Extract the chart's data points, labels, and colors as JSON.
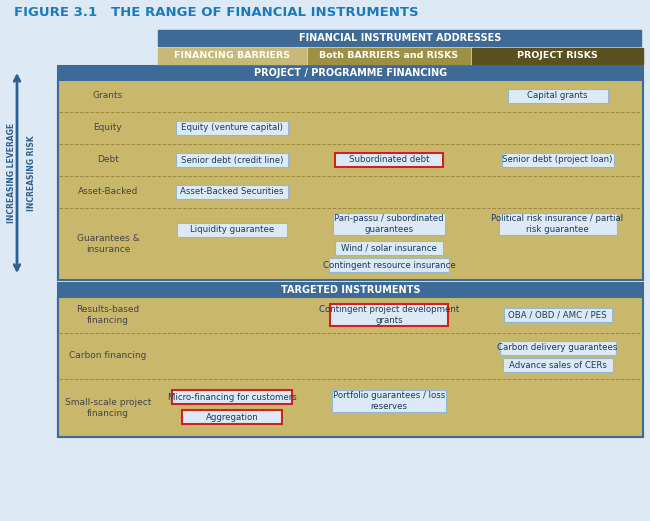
{
  "title": "FIGURE 3.1   THE RANGE OF FINANCIAL INSTRUMENTS",
  "title_color": "#1a7abf",
  "bg_color": "#ddeaf5",
  "header_bar_color": "#3d6a96",
  "header_bar_text": "FINANCIAL INSTRUMENT ADDRESSES",
  "col1_header_text": "FINANCING BARRIERS",
  "col1_header_bg": "#c8b978",
  "col2_header_text": "Both BARRIERS and RISKS",
  "col2_header_bg": "#9e8f44",
  "col3_header_text": "PROJECT RISKS",
  "col3_header_bg": "#5a5020",
  "section1_header_text": "PROJECT / PROGRAMME FINANCING",
  "section1_header_bg": "#3d6a96",
  "section2_header_text": "TARGETED INSTRUMENTS",
  "section2_header_bg": "#3d6a96",
  "section_body_bg": "#c9b86c",
  "row_border_color": "#9a8a3a",
  "item_box_bg": "#ddeaf5",
  "item_box_border_default": "#90b8d0",
  "item_box_border_red": "#cc2222",
  "item_box_text_color": "#1a3a5c",
  "sidebar_arrow_color": "#2d6090",
  "sidebar_bg": "#b8cfe0",
  "left_label_color": "#444444"
}
